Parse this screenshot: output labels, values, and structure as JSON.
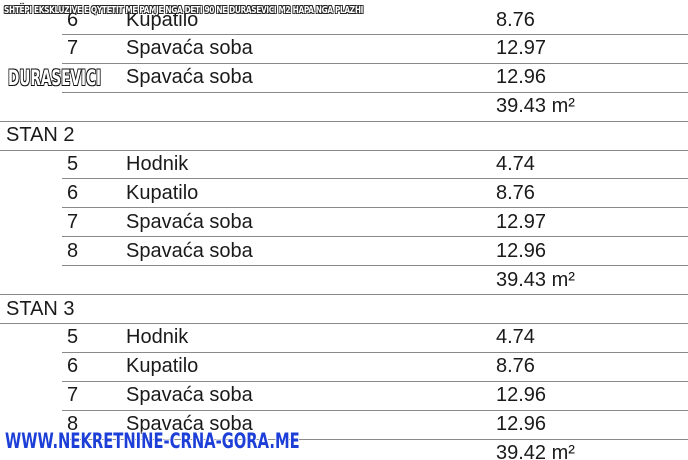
{
  "overlay": {
    "headline": "SHTËPI EKSKLUZIVE E QYTETIT ME PAMJE NGA DETI 90 NE DURASEVICI M2 HAPA NGA PLAZHI",
    "location": "DURASEVICI",
    "website": "WWW.NEKRETNINE-CRNA-GORA.ME"
  },
  "table": {
    "rows": [
      {
        "num": "6",
        "name": "Kupatilo",
        "value": "8.76"
      },
      {
        "num": "7",
        "name": "Spavaća soba",
        "value": "12.97"
      },
      {
        "name": "Spavaća soba",
        "value": "12.96"
      },
      {
        "total": "39.43 m²"
      },
      {
        "section": "STAN 2"
      },
      {
        "num": "5",
        "name": "Hodnik",
        "value": "4.74"
      },
      {
        "num": "6",
        "name": "Kupatilo",
        "value": "8.76"
      },
      {
        "num": "7",
        "name": "Spavaća soba",
        "value": "12.97"
      },
      {
        "num": "8",
        "name": "Spavaća soba",
        "value": "12.96"
      },
      {
        "total": "39.43 m²"
      },
      {
        "section": "STAN 3"
      },
      {
        "num": "5",
        "name": "Hodnik",
        "value": "4.74"
      },
      {
        "num": "6",
        "name": "Kupatilo",
        "value": "8.76"
      },
      {
        "num": "7",
        "name": "Spavaća soba",
        "value": "12.96"
      },
      {
        "num": "8",
        "name": "Spavaća soba",
        "value": "12.96"
      },
      {
        "total": "39.42 m²"
      }
    ]
  }
}
